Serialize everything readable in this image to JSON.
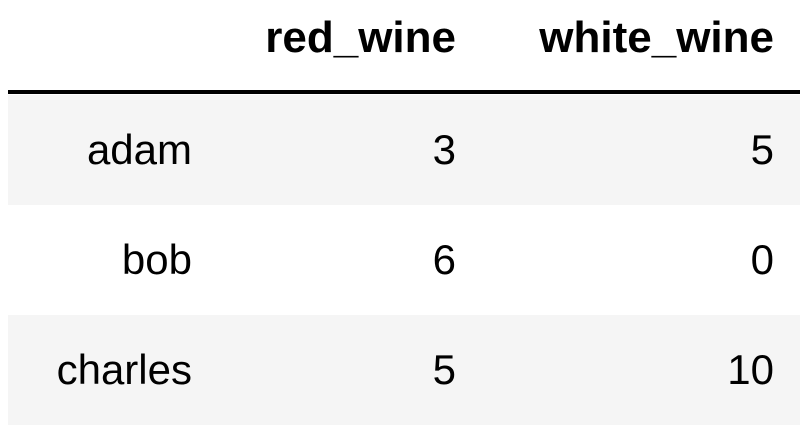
{
  "table": {
    "columns": [
      "red_wine",
      "white_wine"
    ],
    "rows": [
      {
        "index": "adam",
        "red_wine": "3",
        "white_wine": "5"
      },
      {
        "index": "bob",
        "red_wine": "6",
        "white_wine": "0"
      },
      {
        "index": "charles",
        "red_wine": "5",
        "white_wine": "10"
      }
    ]
  },
  "colors": {
    "text": "#000000",
    "stripe": "#f5f5f5",
    "background": "#ffffff",
    "header_rule": "#000000"
  }
}
